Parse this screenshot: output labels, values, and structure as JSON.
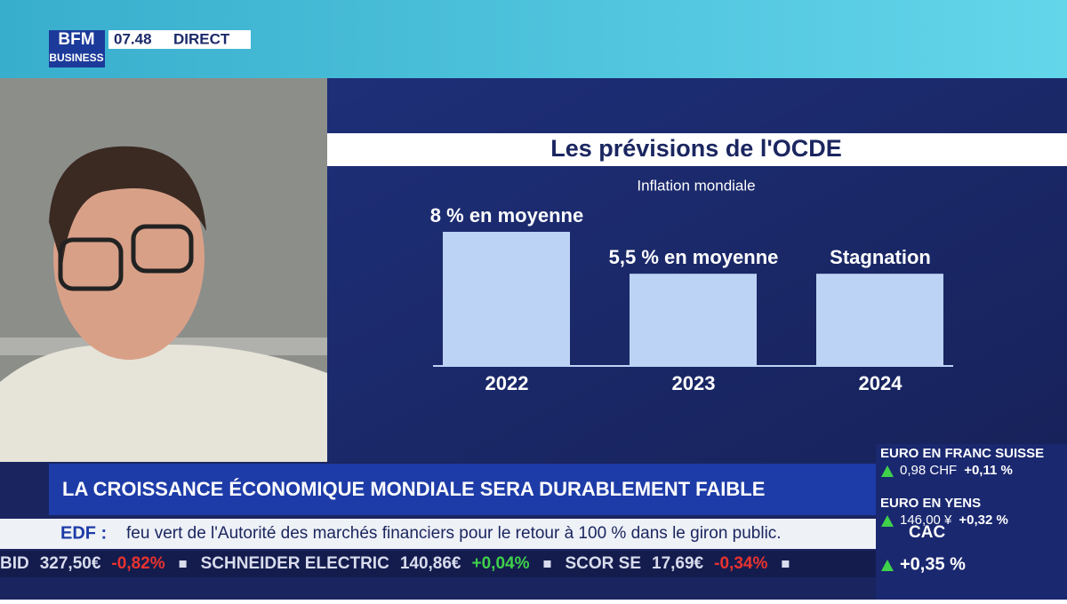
{
  "header": {
    "logo_top": "BFM",
    "logo_bottom": "BUSINESS",
    "time": "07.48",
    "status": "DIRECT"
  },
  "chart_data": {
    "type": "bar",
    "title": "Les prévisions de l'OCDE",
    "subtitle": "Inflation mondiale",
    "categories": [
      "2022",
      "2023",
      "2024"
    ],
    "values": [
      8,
      5.5,
      5.5
    ],
    "value_labels": [
      "8 % en moyenne",
      "5,5 % en moyenne",
      "Stagnation"
    ],
    "color": "#bcd3f5"
  },
  "banner": "LA CROISSANCE ÉCONOMIQUE MONDIALE SERA DURABLEMENT FAIBLE",
  "news": {
    "source": "EDF :",
    "text": "feu vert de l'Autorité des marchés financiers pour le retour à 100 % dans le giron public."
  },
  "ticker": [
    [
      "BID",
      "327,50€",
      "-0,82%"
    ],
    [
      "SCHNEIDER ELECTRIC",
      "140,86€",
      "+0,04%"
    ],
    [
      "SCOR SE",
      "17,69€",
      "-0,34%"
    ]
  ],
  "markets": [
    {
      "name": "EURO EN FRANC SUISSE",
      "price": "0,98 CHF",
      "change": "+0,11 %"
    },
    {
      "name": "EURO EN YENS",
      "price": "146,00 ¥",
      "change": "+0,32 %"
    },
    {
      "name": "CAC",
      "change": "+0,35 %"
    }
  ]
}
